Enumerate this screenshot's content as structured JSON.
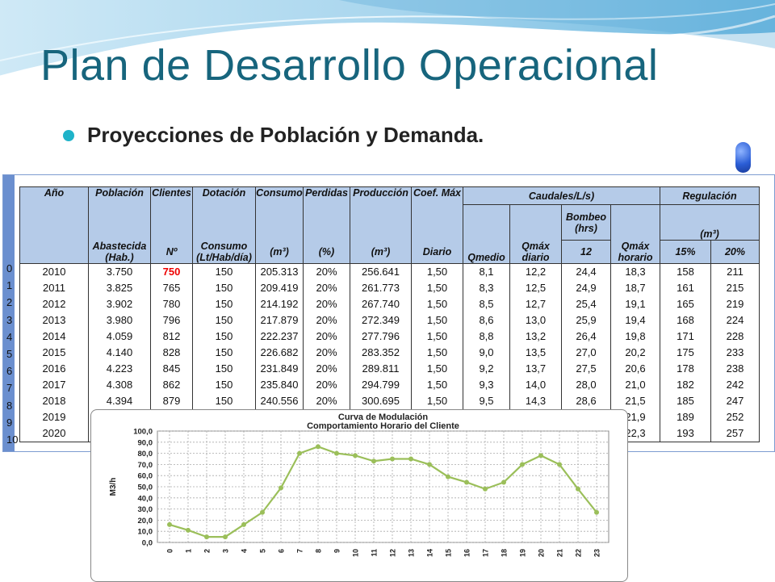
{
  "slide": {
    "title": "Plan de Desarrollo Operacional",
    "bullet": "Proyecciones de Población y Demanda."
  },
  "colors": {
    "title": "#17657d",
    "bullet": "#1fb3c9",
    "header_bg": "#b5cbe8",
    "series": "#9bbf5a"
  },
  "table": {
    "headers": {
      "ano": "Año",
      "poblacion": "Población",
      "poblacion_sub1": "Abastecida",
      "poblacion_sub2": "(Hab.)",
      "clientes": "Clientes",
      "clientes_sub": "Nº",
      "dotacion": "Dotación",
      "dotacion_sub1": "Consumo",
      "dotacion_sub2": "(Lt/Hab/día)",
      "consumo": "Consumo",
      "consumo_sub": "(m³)",
      "perdidas": "Perdidas",
      "perdidas_sub": "(%)",
      "produccion": "Producción",
      "produccion_sub": "(m³)",
      "coef": "Coef. Máx",
      "coef_sub": "Diario",
      "caudales": "Caudales/L/s)",
      "qmedio": "Qmedio",
      "qmaxdiario_1": "Qmáx",
      "qmaxdiario_2": "diario",
      "bombeo_1": "Bombeo",
      "bombeo_2": "(hrs)",
      "bombeo_3": "12",
      "qmaxhorario_1": "Qmáx",
      "qmaxhorario_2": "horario",
      "regulacion": "Regulación",
      "regulacion_sub": "(m³)",
      "reg15": "15%",
      "reg20": "20%"
    },
    "row_index": [
      "0",
      "1",
      "2",
      "3",
      "4",
      "5",
      "6",
      "7",
      "8",
      "9",
      "10"
    ],
    "rows": [
      [
        "2010",
        "3.750",
        "750",
        "150",
        "205.313",
        "20%",
        "256.641",
        "1,50",
        "8,1",
        "12,2",
        "24,4",
        "18,3",
        "158",
        "211"
      ],
      [
        "2011",
        "3.825",
        "765",
        "150",
        "209.419",
        "20%",
        "261.773",
        "1,50",
        "8,3",
        "12,5",
        "24,9",
        "18,7",
        "161",
        "215"
      ],
      [
        "2012",
        "3.902",
        "780",
        "150",
        "214.192",
        "20%",
        "267.740",
        "1,50",
        "8,5",
        "12,7",
        "25,4",
        "19,1",
        "165",
        "219"
      ],
      [
        "2013",
        "3.980",
        "796",
        "150",
        "217.879",
        "20%",
        "272.349",
        "1,50",
        "8,6",
        "13,0",
        "25,9",
        "19,4",
        "168",
        "224"
      ],
      [
        "2014",
        "4.059",
        "812",
        "150",
        "222.237",
        "20%",
        "277.796",
        "1,50",
        "8,8",
        "13,2",
        "26,4",
        "19,8",
        "171",
        "228"
      ],
      [
        "2015",
        "4.140",
        "828",
        "150",
        "226.682",
        "20%",
        "283.352",
        "1,50",
        "9,0",
        "13,5",
        "27,0",
        "20,2",
        "175",
        "233"
      ],
      [
        "2016",
        "4.223",
        "845",
        "150",
        "231.849",
        "20%",
        "289.811",
        "1,50",
        "9,2",
        "13,7",
        "27,5",
        "20,6",
        "178",
        "238"
      ],
      [
        "2017",
        "4.308",
        "862",
        "150",
        "235.840",
        "20%",
        "294.799",
        "1,50",
        "9,3",
        "14,0",
        "28,0",
        "21,0",
        "182",
        "242"
      ],
      [
        "2018",
        "4.394",
        "879",
        "150",
        "240.556",
        "20%",
        "300.695",
        "1,50",
        "9,5",
        "14,3",
        "28,6",
        "21,5",
        "185",
        "247"
      ],
      [
        "2019",
        "",
        "",
        "",
        "",
        "",
        "",
        "",
        "",
        "",
        "",
        "21,9",
        "189",
        "252"
      ],
      [
        "2020",
        "",
        "",
        "",
        "",
        "",
        "",
        "",
        "",
        "",
        "",
        "22,3",
        "193",
        "257"
      ]
    ]
  },
  "chart_data": {
    "type": "line",
    "title": "Curva de Modulación",
    "subtitle": "Comportamiento Horario del Cliente",
    "xlabel": "",
    "ylabel": "M3/h",
    "x": [
      "0",
      "1",
      "2",
      "3",
      "4",
      "5",
      "6",
      "7",
      "8",
      "9",
      "10",
      "11",
      "12",
      "13",
      "14",
      "15",
      "16",
      "17",
      "18",
      "19",
      "20",
      "21",
      "22",
      "23"
    ],
    "values": [
      16,
      11,
      5,
      5,
      16,
      27,
      49,
      80,
      86,
      80,
      78,
      73,
      75,
      75,
      70,
      59,
      54,
      48,
      54,
      70,
      78,
      70,
      48,
      27
    ],
    "ylim": [
      0,
      100
    ],
    "yticks": [
      "0,0",
      "10,0",
      "20,0",
      "30,0",
      "40,0",
      "50,0",
      "60,0",
      "70,0",
      "80,0",
      "90,0",
      "100,0"
    ],
    "grid": true,
    "legend": "none"
  }
}
